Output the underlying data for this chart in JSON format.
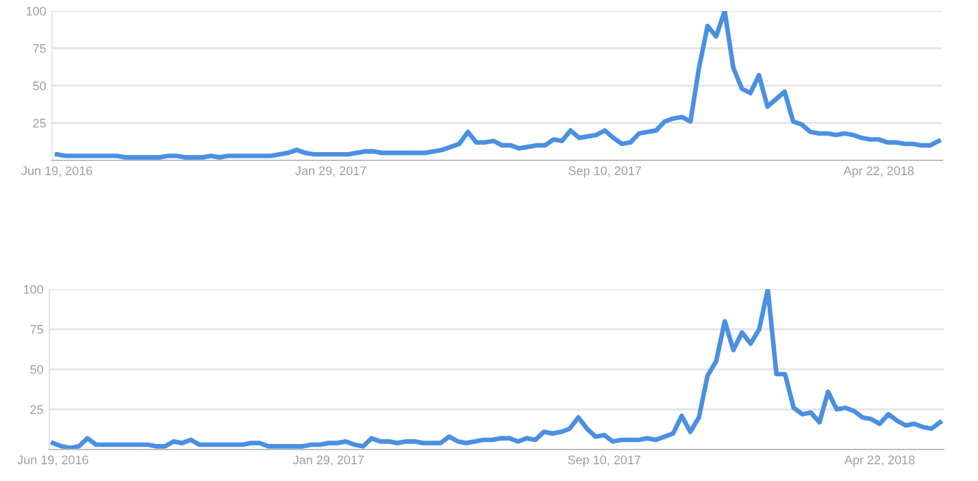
{
  "chart_data": [
    {
      "type": "line",
      "grid": "y",
      "xlim": [
        "2016-06-15",
        "2018-06-13"
      ],
      "ylim": [
        0,
        100
      ],
      "yticks": [
        25,
        50,
        75,
        100
      ],
      "xticks": [
        {
          "value": "2016-06-19",
          "label": "Jun 19, 2016"
        },
        {
          "value": "2017-01-29",
          "label": "Jan 29, 2017"
        },
        {
          "value": "2017-09-10",
          "label": "Sep 10, 2017"
        },
        {
          "value": "2018-04-22",
          "label": "Apr 22, 2018"
        }
      ],
      "x": [
        "2016-06-19",
        "2016-06-26",
        "2016-07-03",
        "2016-07-10",
        "2016-07-17",
        "2016-07-24",
        "2016-07-31",
        "2016-08-07",
        "2016-08-14",
        "2016-08-21",
        "2016-08-28",
        "2016-09-04",
        "2016-09-11",
        "2016-09-18",
        "2016-09-25",
        "2016-10-02",
        "2016-10-09",
        "2016-10-16",
        "2016-10-23",
        "2016-10-30",
        "2016-11-06",
        "2016-11-13",
        "2016-11-20",
        "2016-11-27",
        "2016-12-04",
        "2016-12-11",
        "2016-12-18",
        "2016-12-25",
        "2017-01-01",
        "2017-01-08",
        "2017-01-15",
        "2017-01-22",
        "2017-01-29",
        "2017-02-05",
        "2017-02-12",
        "2017-02-19",
        "2017-02-26",
        "2017-03-05",
        "2017-03-12",
        "2017-03-19",
        "2017-03-26",
        "2017-04-02",
        "2017-04-09",
        "2017-04-16",
        "2017-04-23",
        "2017-04-30",
        "2017-05-07",
        "2017-05-14",
        "2017-05-21",
        "2017-05-28",
        "2017-06-04",
        "2017-06-11",
        "2017-06-18",
        "2017-06-25",
        "2017-07-02",
        "2017-07-09",
        "2017-07-16",
        "2017-07-23",
        "2017-07-30",
        "2017-08-06",
        "2017-08-13",
        "2017-08-20",
        "2017-08-27",
        "2017-09-03",
        "2017-09-10",
        "2017-09-17",
        "2017-09-24",
        "2017-10-01",
        "2017-10-08",
        "2017-10-15",
        "2017-10-22",
        "2017-10-29",
        "2017-11-05",
        "2017-11-12",
        "2017-11-19",
        "2017-11-26",
        "2017-12-03",
        "2017-12-10",
        "2017-12-17",
        "2017-12-24",
        "2017-12-31",
        "2018-01-07",
        "2018-01-14",
        "2018-01-21",
        "2018-01-28",
        "2018-02-04",
        "2018-02-11",
        "2018-02-18",
        "2018-02-25",
        "2018-03-04",
        "2018-03-11",
        "2018-03-18",
        "2018-03-25",
        "2018-04-01",
        "2018-04-08",
        "2018-04-15",
        "2018-04-22",
        "2018-04-29",
        "2018-05-06",
        "2018-05-13",
        "2018-05-20",
        "2018-05-27",
        "2018-06-03",
        "2018-06-10"
      ],
      "series": [
        {
          "color": "#4a90e2",
          "values": [
            4,
            3,
            3,
            3,
            3,
            3,
            3,
            3,
            2,
            2,
            2,
            2,
            2,
            3,
            3,
            2,
            2,
            2,
            3,
            2,
            3,
            3,
            3,
            3,
            3,
            3,
            4,
            5,
            7,
            5,
            4,
            4,
            4,
            4,
            4,
            5,
            6,
            6,
            5,
            5,
            5,
            5,
            5,
            5,
            6,
            7,
            9,
            11,
            19,
            12,
            12,
            13,
            10,
            10,
            8,
            9,
            10,
            10,
            14,
            13,
            20,
            15,
            16,
            17,
            20,
            15,
            11,
            12,
            18,
            19,
            20,
            26,
            28,
            29,
            26,
            62,
            90,
            83,
            100,
            62,
            48,
            45,
            57,
            36,
            41,
            46,
            26,
            24,
            19,
            18,
            18,
            17,
            18,
            17,
            15,
            14,
            14,
            12,
            12,
            11,
            11,
            10,
            10,
            13
          ]
        }
      ]
    },
    {
      "type": "line",
      "grid": "y",
      "xlim": [
        "2016-06-16",
        "2018-06-13"
      ],
      "ylim": [
        0,
        100
      ],
      "yticks": [
        25,
        50,
        75,
        100
      ],
      "xticks": [
        {
          "value": "2016-06-19",
          "label": "Jun 19, 2016"
        },
        {
          "value": "2017-01-29",
          "label": "Jan 29, 2017"
        },
        {
          "value": "2017-09-10",
          "label": "Sep 10, 2017"
        },
        {
          "value": "2018-04-22",
          "label": "Apr 22, 2018"
        }
      ],
      "x": [
        "2016-06-19",
        "2016-06-26",
        "2016-07-03",
        "2016-07-10",
        "2016-07-17",
        "2016-07-24",
        "2016-07-31",
        "2016-08-07",
        "2016-08-14",
        "2016-08-21",
        "2016-08-28",
        "2016-09-04",
        "2016-09-11",
        "2016-09-18",
        "2016-09-25",
        "2016-10-02",
        "2016-10-09",
        "2016-10-16",
        "2016-10-23",
        "2016-10-30",
        "2016-11-06",
        "2016-11-13",
        "2016-11-20",
        "2016-11-27",
        "2016-12-04",
        "2016-12-11",
        "2016-12-18",
        "2016-12-25",
        "2017-01-01",
        "2017-01-08",
        "2017-01-15",
        "2017-01-22",
        "2017-01-29",
        "2017-02-05",
        "2017-02-12",
        "2017-02-19",
        "2017-02-26",
        "2017-03-05",
        "2017-03-12",
        "2017-03-19",
        "2017-03-26",
        "2017-04-02",
        "2017-04-09",
        "2017-04-16",
        "2017-04-23",
        "2017-04-30",
        "2017-05-07",
        "2017-05-14",
        "2017-05-21",
        "2017-05-28",
        "2017-06-04",
        "2017-06-11",
        "2017-06-18",
        "2017-06-25",
        "2017-07-02",
        "2017-07-09",
        "2017-07-16",
        "2017-07-23",
        "2017-07-30",
        "2017-08-06",
        "2017-08-13",
        "2017-08-20",
        "2017-08-27",
        "2017-09-03",
        "2017-09-10",
        "2017-09-17",
        "2017-09-24",
        "2017-10-01",
        "2017-10-08",
        "2017-10-15",
        "2017-10-22",
        "2017-10-29",
        "2017-11-05",
        "2017-11-12",
        "2017-11-19",
        "2017-11-26",
        "2017-12-03",
        "2017-12-10",
        "2017-12-17",
        "2017-12-24",
        "2017-12-31",
        "2018-01-07",
        "2018-01-14",
        "2018-01-21",
        "2018-01-28",
        "2018-02-04",
        "2018-02-11",
        "2018-02-18",
        "2018-02-25",
        "2018-03-04",
        "2018-03-11",
        "2018-03-18",
        "2018-03-25",
        "2018-04-01",
        "2018-04-08",
        "2018-04-15",
        "2018-04-22",
        "2018-04-29",
        "2018-05-06",
        "2018-05-13",
        "2018-05-20",
        "2018-05-27",
        "2018-06-03",
        "2018-06-10"
      ],
      "series": [
        {
          "color": "#4a90e2",
          "values": [
            4,
            2,
            1,
            2,
            7,
            3,
            3,
            3,
            3,
            3,
            3,
            3,
            2,
            2,
            5,
            4,
            6,
            3,
            3,
            3,
            3,
            3,
            3,
            4,
            4,
            2,
            2,
            2,
            2,
            2,
            3,
            3,
            4,
            4,
            5,
            3,
            2,
            7,
            5,
            5,
            4,
            5,
            5,
            4,
            4,
            4,
            8,
            5,
            4,
            5,
            6,
            6,
            7,
            7,
            5,
            7,
            6,
            11,
            10,
            11,
            13,
            20,
            13,
            8,
            9,
            5,
            6,
            6,
            6,
            7,
            6,
            8,
            10,
            21,
            11,
            20,
            46,
            55,
            80,
            62,
            73,
            66,
            75,
            100,
            47,
            47,
            26,
            22,
            23,
            17,
            36,
            25,
            26,
            24,
            20,
            19,
            16,
            22,
            18,
            15,
            16,
            14,
            13,
            17
          ]
        }
      ]
    }
  ]
}
